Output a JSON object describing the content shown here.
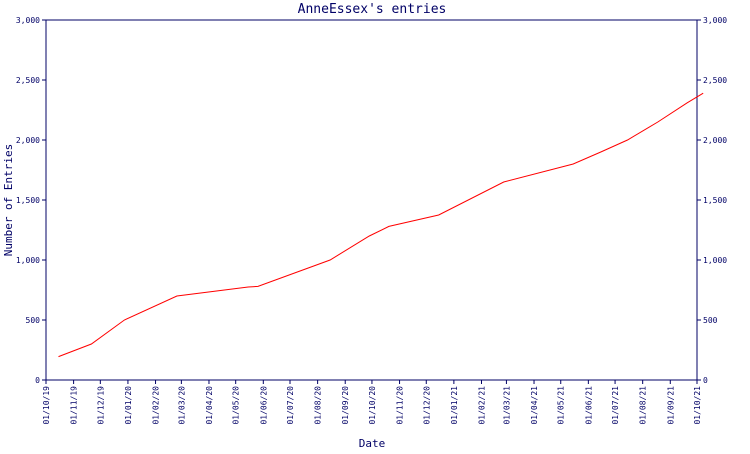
{
  "chart_data": {
    "type": "line",
    "title": "AnneEssex's entries",
    "xlabel": "Date",
    "ylabel": "Number of Entries",
    "xlim": [
      "01/10/19",
      "01/10/21"
    ],
    "ylim": [
      0,
      3000
    ],
    "yticks": [
      0,
      500,
      1000,
      1500,
      2000,
      2500,
      3000
    ],
    "ytick_labels": [
      "0",
      "500",
      "1,000",
      "1,500",
      "2,000",
      "2,500",
      "3,000"
    ],
    "xtick_labels": [
      "01/10/19",
      "01/11/19",
      "01/12/19",
      "01/01/20",
      "01/02/20",
      "01/03/20",
      "01/04/20",
      "01/05/20",
      "01/06/20",
      "01/07/20",
      "01/08/20",
      "01/09/20",
      "01/10/20",
      "01/11/20",
      "01/12/20",
      "01/01/21",
      "01/02/21",
      "01/03/21",
      "01/04/21",
      "01/05/21",
      "01/06/21",
      "01/07/21",
      "01/08/21",
      "01/09/21",
      "01/10/21"
    ],
    "grid": false,
    "line_color": "#ff0000",
    "axis_color": "#000066",
    "series": [
      {
        "x": [
          "15/10/19",
          "21/11/19",
          "28/12/19",
          "25/02/20",
          "15/05/20",
          "26/05/20",
          "15/08/20",
          "28/09/20",
          "20/10/20",
          "15/12/20",
          "26/02/21",
          "15/05/21",
          "15/06/21",
          "15/07/21",
          "18/08/21",
          "20/09/21",
          "08/10/21"
        ],
        "values": [
          195,
          300,
          500,
          700,
          775,
          780,
          1000,
          1200,
          1280,
          1375,
          1650,
          1800,
          1900,
          2000,
          2150,
          2310,
          2390
        ]
      }
    ]
  }
}
